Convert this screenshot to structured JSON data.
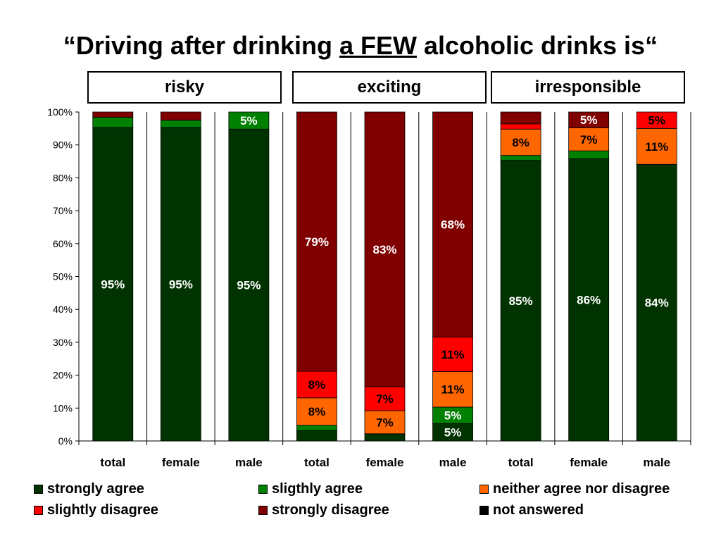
{
  "title": {
    "prefix": "“Driving after drinking ",
    "underlined": "a FEW",
    "suffix": " alcoholic drinks is“"
  },
  "groups": [
    "risky",
    "exciting",
    "irresponsible"
  ],
  "colors": {
    "strongly agree": "#003300",
    "sligthly agree": "#008000",
    "neither agree nor disagree": "#ff6600",
    "slightly disagree": "#ff0000",
    "strongly disagree": "#800000",
    "not answered": "#000000"
  },
  "chart_data": {
    "type": "bar",
    "stacked": true,
    "ylim": [
      0,
      100
    ],
    "yticks": [
      "0%",
      "10%",
      "20%",
      "30%",
      "40%",
      "50%",
      "60%",
      "70%",
      "80%",
      "90%",
      "100%"
    ],
    "categories": [
      "total",
      "female",
      "male",
      "total",
      "female",
      "male",
      "total",
      "female",
      "male"
    ],
    "category_groups": [
      "risky",
      "risky",
      "risky",
      "exciting",
      "exciting",
      "exciting",
      "irresponsible",
      "irresponsible",
      "irresponsible"
    ],
    "series": [
      {
        "name": "strongly agree",
        "values": [
          95.3,
          95.3,
          94.8,
          3.2,
          2.2,
          5.3,
          85.3,
          85.8,
          84.1
        ]
      },
      {
        "name": "sligthly agree",
        "values": [
          3.1,
          2.2,
          5.2,
          1.6,
          0.0,
          5.0,
          1.5,
          2.4,
          0.0
        ]
      },
      {
        "name": "neither agree nor disagree",
        "values": [
          0.0,
          0.0,
          0.0,
          8.3,
          7.0,
          10.8,
          8.0,
          7.0,
          10.9
        ]
      },
      {
        "name": "slightly disagree",
        "values": [
          0.0,
          0.0,
          0.0,
          8.1,
          7.3,
          10.5,
          1.6,
          0.0,
          5.0
        ]
      },
      {
        "name": "strongly disagree",
        "values": [
          1.6,
          2.5,
          0.0,
          78.8,
          83.5,
          68.4,
          3.6,
          4.8,
          0.0
        ]
      },
      {
        "name": "not answered",
        "values": [
          0,
          0,
          0,
          0,
          0,
          0,
          0,
          0,
          0
        ]
      }
    ],
    "data_labels": [
      {
        "bar": 0,
        "series": 0,
        "text": "95%"
      },
      {
        "bar": 1,
        "series": 0,
        "text": "95%"
      },
      {
        "bar": 2,
        "series": 0,
        "text": "95%"
      },
      {
        "bar": 2,
        "series": 1,
        "text": "5%"
      },
      {
        "bar": 3,
        "series": 2,
        "text": "8%"
      },
      {
        "bar": 3,
        "series": 3,
        "text": "8%"
      },
      {
        "bar": 3,
        "series": 4,
        "text": "79%"
      },
      {
        "bar": 4,
        "series": 2,
        "text": "7%"
      },
      {
        "bar": 4,
        "series": 3,
        "text": "7%"
      },
      {
        "bar": 4,
        "series": 4,
        "text": "83%"
      },
      {
        "bar": 5,
        "series": 0,
        "text": "5%"
      },
      {
        "bar": 5,
        "series": 1,
        "text": "5%"
      },
      {
        "bar": 5,
        "series": 2,
        "text": "11%"
      },
      {
        "bar": 5,
        "series": 3,
        "text": "11%"
      },
      {
        "bar": 5,
        "series": 4,
        "text": "68%"
      },
      {
        "bar": 6,
        "series": 0,
        "text": "85%"
      },
      {
        "bar": 6,
        "series": 2,
        "text": "8%"
      },
      {
        "bar": 7,
        "series": 0,
        "text": "86%"
      },
      {
        "bar": 7,
        "series": 2,
        "text": "7%"
      },
      {
        "bar": 7,
        "series": 4,
        "text": "5%"
      },
      {
        "bar": 8,
        "series": 0,
        "text": "84%"
      },
      {
        "bar": 8,
        "series": 2,
        "text": "11%"
      },
      {
        "bar": 8,
        "series": 3,
        "text": "5%"
      }
    ],
    "legend_position": "bottom",
    "grid": "vertical"
  }
}
